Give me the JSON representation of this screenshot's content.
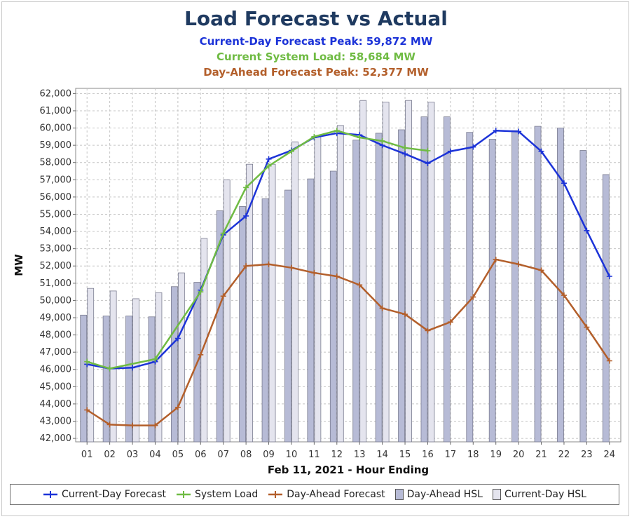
{
  "title": "Load Forecast vs Actual",
  "subtitles": {
    "current_day_peak": "Current-Day Forecast Peak:  59,872 MW",
    "system_load": "Current System Load:  58,684 MW",
    "day_ahead_peak": "Day-Ahead Forecast Peak:  52,377 MW"
  },
  "colors": {
    "current_day": "#1c33d8",
    "system_load": "#6fbb43",
    "day_ahead": "#b35f2b",
    "da_hsl_fill": "#b7bbd6",
    "cd_hsl_fill": "#e4e4ee",
    "title": "#1f3a60"
  },
  "legend": [
    {
      "label": "Current-Day Forecast",
      "kind": "line",
      "color": "#1c33d8"
    },
    {
      "label": "System Load",
      "kind": "line",
      "color": "#6fbb43"
    },
    {
      "label": "Day-Ahead Forecast",
      "kind": "line",
      "color": "#b35f2b"
    },
    {
      "label": "Day-Ahead HSL",
      "kind": "box",
      "color": "#b7bbd6"
    },
    {
      "label": "Current-Day HSL",
      "kind": "box",
      "color": "#e4e4ee"
    }
  ],
  "chart_data": {
    "type": "bar",
    "xlabel": "Feb 11, 2021 - Hour Ending",
    "ylabel": "MW",
    "ylim": [
      41800,
      62300
    ],
    "yticks": [
      42000,
      43000,
      44000,
      45000,
      46000,
      47000,
      48000,
      49000,
      50000,
      51000,
      52000,
      53000,
      54000,
      55000,
      56000,
      57000,
      58000,
      59000,
      60000,
      61000,
      62000
    ],
    "ytick_labels": [
      "42,000",
      "43,000",
      "44,000",
      "45,000",
      "46,000",
      "47,000",
      "48,000",
      "49,000",
      "50,000",
      "51,000",
      "52,000",
      "53,000",
      "54,000",
      "55,000",
      "56,000",
      "57,000",
      "58,000",
      "59,000",
      "60,000",
      "61,000",
      "62,000"
    ],
    "categories": [
      "01",
      "02",
      "03",
      "04",
      "05",
      "06",
      "07",
      "08",
      "09",
      "10",
      "11",
      "12",
      "13",
      "14",
      "15",
      "16",
      "17",
      "18",
      "19",
      "20",
      "21",
      "22",
      "23",
      "24"
    ],
    "grid": true,
    "bar_series": [
      {
        "name": "Day-Ahead HSL",
        "values": [
          49150,
          49100,
          49100,
          49050,
          50800,
          51050,
          55200,
          55450,
          55900,
          56400,
          57050,
          57500,
          59300,
          59700,
          59900,
          60650,
          60650,
          59750,
          59350,
          59850,
          60100,
          60000,
          58700,
          57300
        ]
      },
      {
        "name": "Current-Day HSL",
        "values": [
          50700,
          50550,
          50100,
          50450,
          51600,
          53600,
          57000,
          57900,
          57900,
          59200,
          59500,
          60150,
          61600,
          61500,
          61600,
          61500,
          null,
          null,
          null,
          null,
          null,
          null,
          null,
          null
        ]
      }
    ],
    "line_series": [
      {
        "name": "Current-Day Forecast",
        "values": [
          46300,
          46050,
          46100,
          46450,
          47800,
          50600,
          53800,
          54900,
          58200,
          58700,
          59450,
          59700,
          59600,
          59000,
          58500,
          57950,
          58650,
          58900,
          59850,
          59800,
          58650,
          56800,
          54050,
          51400
        ]
      },
      {
        "name": "System Load",
        "values": [
          46450,
          46050,
          null,
          46600,
          null,
          50500,
          53900,
          56550,
          57800,
          58650,
          59500,
          59850,
          59450,
          59250,
          58850,
          58684,
          null,
          null,
          null,
          null,
          null,
          null,
          null,
          null
        ]
      },
      {
        "name": "Day-Ahead Forecast",
        "values": [
          43650,
          42800,
          42750,
          42750,
          43800,
          46850,
          50250,
          52000,
          52100,
          51900,
          51600,
          51400,
          50900,
          49550,
          49200,
          48250,
          48750,
          50200,
          52377,
          52100,
          51750,
          50300,
          48450,
          46500
        ]
      }
    ]
  }
}
